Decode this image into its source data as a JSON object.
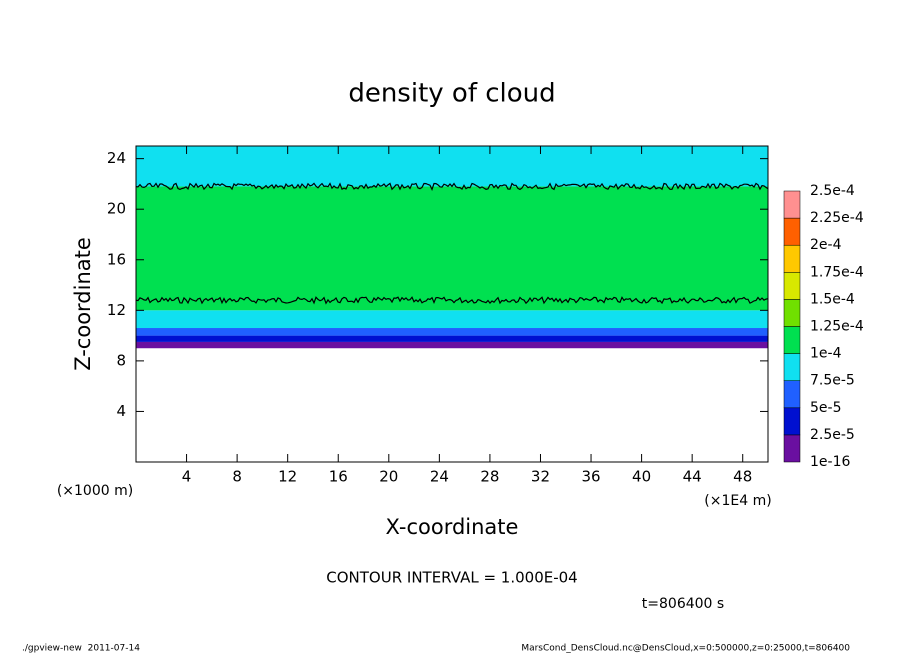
{
  "chart_data": {
    "type": "contour",
    "title": "density of cloud",
    "xlabel": "X-coordinate",
    "ylabel": "Z-coordinate",
    "x_unit": "(×1E4 m)",
    "y_unit": "(×1000 m)",
    "xlim": [
      0,
      50
    ],
    "xticks": [
      4,
      8,
      12,
      16,
      20,
      24,
      28,
      32,
      36,
      40,
      44,
      48
    ],
    "ylim": [
      0,
      25
    ],
    "yticks": [
      4,
      8,
      12,
      16,
      20,
      24
    ],
    "levels": [
      {
        "value": 1e-16,
        "label": "1e-16"
      },
      {
        "value": 2.5e-05,
        "label": "2.5e-5"
      },
      {
        "value": 5e-05,
        "label": "5e-5"
      },
      {
        "value": 7.5e-05,
        "label": "7.5e-5"
      },
      {
        "value": 0.0001,
        "label": "1e-4"
      },
      {
        "value": 0.000125,
        "label": "1.25e-4"
      },
      {
        "value": 0.00015,
        "label": "1.5e-4"
      },
      {
        "value": 0.000175,
        "label": "1.75e-4"
      },
      {
        "value": 0.0002,
        "label": "2e-4"
      },
      {
        "value": 0.000225,
        "label": "2.25e-4"
      },
      {
        "value": 0.00025,
        "label": "2.5e-4"
      }
    ],
    "colors": [
      "#6a0fa0",
      "#0010d0",
      "#2060ff",
      "#10e0f0",
      "#00e050",
      "#70e000",
      "#d8e800",
      "#ffc800",
      "#ff6000",
      "#ff9090"
    ],
    "layers": [
      {
        "z": [
          9.0,
          9.5
        ],
        "value": 1e-05
      },
      {
        "z": [
          9.5,
          10.0
        ],
        "value": 3e-05
      },
      {
        "z": [
          10.0,
          10.6
        ],
        "value": 6e-05
      },
      {
        "z": [
          10.6,
          12.0
        ],
        "value": 8e-05
      },
      {
        "z": [
          12.0,
          21.8
        ],
        "value": 0.00011
      },
      {
        "z": [
          21.8,
          25.0
        ],
        "value": 9e-05
      }
    ],
    "contour_z": [
      12.8,
      21.8
    ],
    "contour_interval": "CONTOUR INTERVAL = 1.000E-04",
    "time": "t=806400 s",
    "footer_left": "./gpview-new  2011-07-14",
    "footer_right": "MarsCond_DensCloud.nc@DensCloud,x=0:500000,z=0:25000,t=806400"
  }
}
